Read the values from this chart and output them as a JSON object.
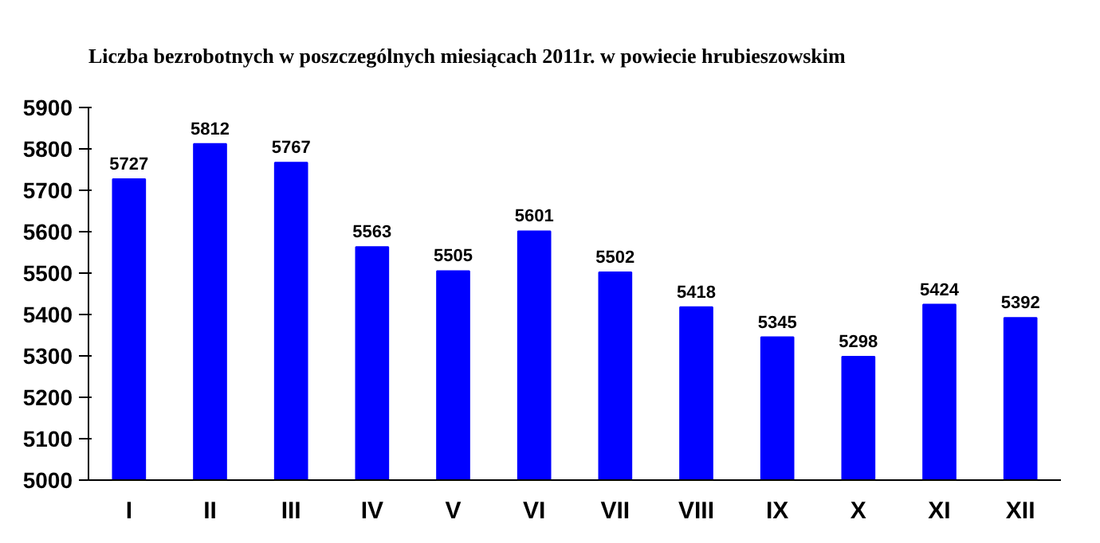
{
  "chart_data": {
    "type": "bar",
    "title": "Liczba bezrobotnych w poszczególnych miesiącach 2011r. w powiecie hrubieszowskim",
    "categories": [
      "I",
      "II",
      "III",
      "IV",
      "V",
      "VI",
      "VII",
      "VIII",
      "IX",
      "X",
      "XI",
      "XII"
    ],
    "values": [
      5727,
      5812,
      5767,
      5563,
      5505,
      5601,
      5502,
      5418,
      5345,
      5298,
      5424,
      5392
    ],
    "color": "#0000ff",
    "ylim": [
      5000,
      5900
    ],
    "yticks": [
      5000,
      5100,
      5200,
      5300,
      5400,
      5500,
      5600,
      5700,
      5800,
      5900
    ],
    "grid": false,
    "data_labels": true
  }
}
